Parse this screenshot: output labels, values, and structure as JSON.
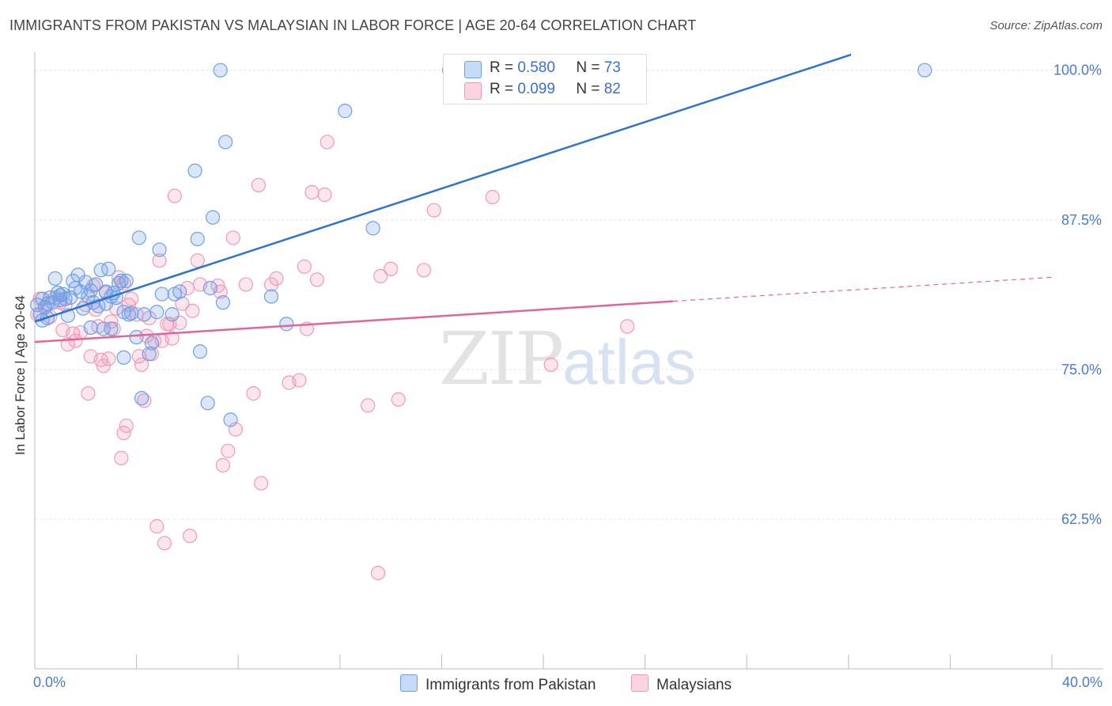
{
  "header": {
    "title": "IMMIGRANTS FROM PAKISTAN VS MALAYSIAN IN LABOR FORCE | AGE 20-64 CORRELATION CHART",
    "source": "Source: ZipAtlas.com"
  },
  "watermark": {
    "zip": "ZIP",
    "atlas": "atlas"
  },
  "legend": {
    "blue": {
      "r_label": "R =",
      "r_value": "0.580",
      "n_label": "N =",
      "n_value": "73"
    },
    "pink": {
      "r_label": "R =",
      "r_value": "0.099",
      "n_label": "N =",
      "n_value": "82"
    }
  },
  "bottom_legend": {
    "series1": "Immigrants from Pakistan",
    "series2": "Malaysians"
  },
  "colors": {
    "blue": "#6f9fe6",
    "blue_line": "#2f73d1",
    "pink": "#f19ab8",
    "pink_line": "#e0669a",
    "axis_text": "#4a7cc9"
  },
  "chart_data": {
    "type": "scatter",
    "ylabel": "In Labor Force | Age 20-64",
    "xlim": [
      0,
      40
    ],
    "ylim": [
      50,
      101.5
    ],
    "x_tick_labels": [
      "0.0%",
      "40.0%"
    ],
    "y_ticks": [
      100,
      87.5,
      75,
      62.5
    ],
    "y_tick_labels": [
      "100.0%",
      "87.5%",
      "75.0%",
      "62.5%"
    ],
    "grid": true,
    "series": [
      {
        "name": "Immigrants from Pakistan",
        "color": "#6f9fe6",
        "trend": {
          "x": [
            0,
            32.1
          ],
          "y": [
            79.0,
            101.3
          ]
        },
        "points": [
          [
            0.1,
            80.4
          ],
          [
            0.2,
            79.6
          ],
          [
            0.3,
            80.9
          ],
          [
            0.4,
            80.2
          ],
          [
            0.5,
            79.3
          ],
          [
            0.6,
            81.0
          ],
          [
            0.7,
            80.6
          ],
          [
            0.8,
            82.6
          ],
          [
            0.9,
            81.4
          ],
          [
            1.0,
            80.8
          ],
          [
            1.1,
            81.3
          ],
          [
            1.2,
            80.9
          ],
          [
            1.3,
            79.5
          ],
          [
            1.4,
            81.0
          ],
          [
            1.5,
            82.4
          ],
          [
            1.6,
            81.8
          ],
          [
            1.7,
            82.9
          ],
          [
            1.8,
            81.5
          ],
          [
            1.9,
            80.1
          ],
          [
            2.0,
            82.3
          ],
          [
            2.1,
            81.1
          ],
          [
            2.2,
            78.5
          ],
          [
            2.3,
            80.6
          ],
          [
            2.4,
            82.1
          ],
          [
            2.5,
            80.3
          ],
          [
            2.6,
            83.3
          ],
          [
            2.7,
            78.4
          ],
          [
            2.8,
            81.5
          ],
          [
            2.9,
            83.4
          ],
          [
            3.0,
            78.4
          ],
          [
            3.1,
            81.4
          ],
          [
            3.2,
            81.0
          ],
          [
            3.3,
            82.2
          ],
          [
            3.4,
            82.4
          ],
          [
            3.5,
            79.8
          ],
          [
            3.6,
            82.4
          ],
          [
            3.5,
            76.0
          ],
          [
            3.7,
            79.6
          ],
          [
            3.8,
            79.7
          ],
          [
            4.0,
            77.7
          ],
          [
            4.1,
            86.0
          ],
          [
            4.2,
            72.6
          ],
          [
            4.3,
            79.6
          ],
          [
            4.5,
            76.3
          ],
          [
            4.6,
            77.2
          ],
          [
            4.8,
            79.8
          ],
          [
            4.9,
            85.0
          ],
          [
            5.0,
            81.3
          ],
          [
            5.4,
            79.6
          ],
          [
            5.5,
            81.3
          ],
          [
            5.7,
            81.5
          ],
          [
            6.5,
            76.5
          ],
          [
            6.3,
            91.6
          ],
          [
            6.4,
            85.9
          ],
          [
            6.9,
            81.8
          ],
          [
            6.8,
            72.2
          ],
          [
            7.0,
            87.7
          ],
          [
            7.4,
            80.6
          ],
          [
            7.3,
            100.0
          ],
          [
            7.5,
            94.0
          ],
          [
            7.7,
            70.8
          ],
          [
            9.3,
            81.1
          ],
          [
            9.9,
            78.8
          ],
          [
            12.2,
            96.6
          ],
          [
            13.3,
            86.8
          ],
          [
            16.3,
            100.0
          ],
          [
            35.0,
            100.0
          ],
          [
            0.3,
            79.1
          ],
          [
            0.5,
            80.5
          ],
          [
            1.0,
            81.2
          ],
          [
            2.2,
            81.6
          ],
          [
            2.8,
            80.5
          ],
          [
            3.0,
            81.1
          ]
        ]
      },
      {
        "name": "Malaysians",
        "color": "#f19ab8",
        "trend": {
          "x": [
            0,
            25.1
          ],
          "y": [
            77.3,
            80.7
          ]
        },
        "trend_dashed": {
          "x": [
            25.1,
            40
          ],
          "y": [
            80.7,
            82.7
          ]
        },
        "points": [
          [
            0.1,
            79.6
          ],
          [
            0.2,
            80.9
          ],
          [
            0.4,
            80.2
          ],
          [
            0.6,
            79.4
          ],
          [
            0.8,
            81.0
          ],
          [
            1.0,
            80.6
          ],
          [
            1.1,
            78.3
          ],
          [
            1.2,
            80.4
          ],
          [
            1.3,
            77.1
          ],
          [
            1.5,
            78.0
          ],
          [
            1.6,
            77.4
          ],
          [
            1.8,
            78.1
          ],
          [
            2.0,
            80.4
          ],
          [
            2.1,
            73.0
          ],
          [
            2.2,
            76.1
          ],
          [
            2.3,
            82.0
          ],
          [
            2.4,
            80.0
          ],
          [
            2.5,
            78.6
          ],
          [
            2.6,
            75.8
          ],
          [
            2.7,
            75.3
          ],
          [
            2.8,
            81.4
          ],
          [
            2.9,
            75.9
          ],
          [
            3.0,
            79.0
          ],
          [
            3.1,
            78.4
          ],
          [
            3.2,
            80.1
          ],
          [
            3.3,
            82.7
          ],
          [
            3.4,
            67.6
          ],
          [
            3.5,
            82.2
          ],
          [
            3.5,
            69.7
          ],
          [
            3.6,
            70.3
          ],
          [
            3.7,
            80.4
          ],
          [
            3.8,
            80.9
          ],
          [
            4.0,
            79.6
          ],
          [
            4.1,
            76.1
          ],
          [
            4.2,
            75.4
          ],
          [
            4.3,
            72.4
          ],
          [
            4.4,
            77.8
          ],
          [
            4.5,
            79.3
          ],
          [
            4.6,
            76.3
          ],
          [
            4.7,
            77.4
          ],
          [
            4.8,
            61.9
          ],
          [
            4.9,
            84.1
          ],
          [
            5.0,
            77.4
          ],
          [
            5.1,
            60.5
          ],
          [
            5.2,
            78.8
          ],
          [
            5.3,
            78.8
          ],
          [
            5.4,
            77.6
          ],
          [
            5.5,
            89.5
          ],
          [
            5.7,
            78.9
          ],
          [
            5.8,
            80.5
          ],
          [
            6.0,
            81.8
          ],
          [
            6.2,
            79.9
          ],
          [
            6.1,
            61.1
          ],
          [
            6.4,
            84.1
          ],
          [
            6.5,
            82.1
          ],
          [
            7.2,
            82.0
          ],
          [
            7.3,
            81.5
          ],
          [
            7.4,
            67.0
          ],
          [
            7.6,
            68.2
          ],
          [
            7.8,
            86.0
          ],
          [
            7.9,
            70.0
          ],
          [
            8.3,
            82.1
          ],
          [
            8.6,
            73.0
          ],
          [
            8.8,
            90.4
          ],
          [
            8.9,
            65.5
          ],
          [
            9.3,
            82.1
          ],
          [
            9.5,
            82.6
          ],
          [
            10.0,
            73.9
          ],
          [
            10.4,
            74.1
          ],
          [
            10.6,
            83.6
          ],
          [
            10.7,
            78.4
          ],
          [
            10.9,
            89.8
          ],
          [
            11.1,
            82.5
          ],
          [
            11.4,
            89.6
          ],
          [
            11.5,
            94.0
          ],
          [
            13.1,
            72.0
          ],
          [
            13.5,
            58.0
          ],
          [
            13.6,
            82.8
          ],
          [
            14.0,
            83.4
          ],
          [
            14.3,
            72.5
          ],
          [
            15.3,
            83.3
          ],
          [
            15.7,
            88.3
          ]
        ]
      }
    ],
    "extra_points_pink": [
      [
        18.0,
        89.4
      ],
      [
        20.3,
        75.4
      ],
      [
        23.3,
        78.6
      ]
    ]
  }
}
